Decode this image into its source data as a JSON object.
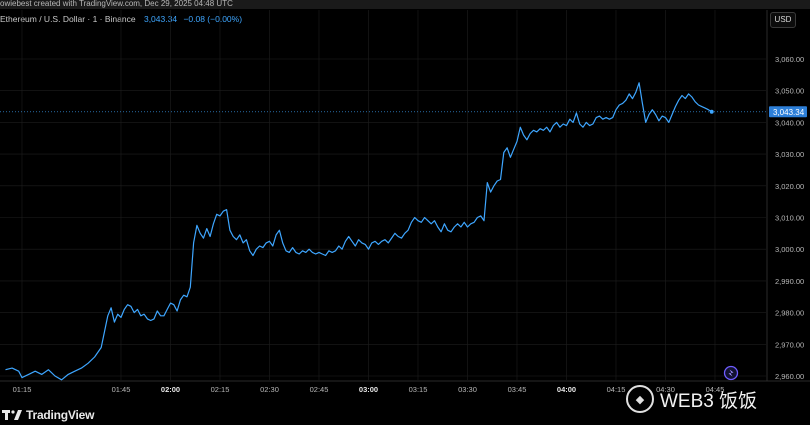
{
  "header": {
    "credit": "owiebest created with TradingView.com, Dec 29, 2025 04:48 UTC",
    "symbol": "Ethereum / U.S. Dollar · 1 · Binance",
    "last_price": "3,043.34",
    "change": "−0.08 (−0.00%)",
    "currency_button": "USD"
  },
  "branding": {
    "logo_text": "TradingView",
    "watermark_text": "WEB3 饭饭"
  },
  "colors": {
    "background": "#000000",
    "line": "#3ea6ff",
    "grid": "#1e1e1e",
    "axis_text": "#b8b8b8",
    "price_tag": "#2d7fd8"
  },
  "chart_data": {
    "type": "line",
    "title": "Ethereum / U.S. Dollar · 1 · Binance",
    "xlabel": "",
    "ylabel": "",
    "x_tick_labels": [
      "01:15",
      "01:45",
      "02:00",
      "02:15",
      "02:30",
      "02:45",
      "03:00",
      "03:15",
      "03:30",
      "03:45",
      "04:00",
      "04:15",
      "04:30",
      "04:45"
    ],
    "y_tick_labels": [
      "2,960.00",
      "2,970.00",
      "2,980.00",
      "2,990.00",
      "3,000.00",
      "3,010.00",
      "3,020.00",
      "3,030.00",
      "3,040.00",
      "3,050.00",
      "3,060.00"
    ],
    "ylim": [
      2959,
      3066
    ],
    "xlim": [
      "01:15",
      "04:50"
    ],
    "grid": true,
    "last_price_label": "3,043.34",
    "series": [
      {
        "values": [
          [
            "01:10",
            2962.0
          ],
          [
            "01:12",
            2962.5
          ],
          [
            "01:14",
            2961.5
          ],
          [
            "01:15",
            2959.5
          ],
          [
            "01:17",
            2960.5
          ],
          [
            "01:19",
            2961.5
          ],
          [
            "01:21",
            2960.5
          ],
          [
            "01:23",
            2962.0
          ],
          [
            "01:25",
            2960.0
          ],
          [
            "01:27",
            2958.8
          ],
          [
            "01:29",
            2960.5
          ],
          [
            "01:31",
            2961.5
          ],
          [
            "01:33",
            2962.5
          ],
          [
            "01:35",
            2964.0
          ],
          [
            "01:37",
            2966.0
          ],
          [
            "01:39",
            2969.0
          ],
          [
            "01:40",
            2974.0
          ],
          [
            "01:41",
            2979.0
          ],
          [
            "01:42",
            2981.5
          ],
          [
            "01:43",
            2977.0
          ],
          [
            "01:44",
            2979.5
          ],
          [
            "01:45",
            2978.5
          ],
          [
            "01:46",
            2981.0
          ],
          [
            "01:47",
            2982.5
          ],
          [
            "01:48",
            2982.0
          ],
          [
            "01:49",
            2980.0
          ],
          [
            "01:50",
            2981.0
          ],
          [
            "01:51",
            2979.0
          ],
          [
            "01:52",
            2979.5
          ],
          [
            "01:53",
            2978.0
          ],
          [
            "01:54",
            2977.5
          ],
          [
            "01:55",
            2978.0
          ],
          [
            "01:56",
            2980.5
          ],
          [
            "01:57",
            2979.0
          ],
          [
            "01:58",
            2979.0
          ],
          [
            "01:59",
            2981.0
          ],
          [
            "02:00",
            2983.0
          ],
          [
            "02:01",
            2982.5
          ],
          [
            "02:02",
            2980.5
          ],
          [
            "02:03",
            2984.0
          ],
          [
            "02:04",
            2985.5
          ],
          [
            "02:05",
            2985.0
          ],
          [
            "02:06",
            2988.0
          ],
          [
            "02:07",
            3002.0
          ],
          [
            "02:08",
            3007.5
          ],
          [
            "02:09",
            3005.0
          ],
          [
            "02:10",
            3003.5
          ],
          [
            "02:11",
            3006.5
          ],
          [
            "02:12",
            3004.0
          ],
          [
            "02:13",
            3008.0
          ],
          [
            "02:14",
            3011.0
          ],
          [
            "02:15",
            3010.5
          ],
          [
            "02:16",
            3012.0
          ],
          [
            "02:17",
            3012.5
          ],
          [
            "02:18",
            3006.0
          ],
          [
            "02:19",
            3004.0
          ],
          [
            "02:20",
            3003.0
          ],
          [
            "02:21",
            3004.5
          ],
          [
            "02:22",
            3002.0
          ],
          [
            "02:23",
            3003.0
          ],
          [
            "02:24",
            2999.5
          ],
          [
            "02:25",
            2998.0
          ],
          [
            "02:26",
            3000.0
          ],
          [
            "02:27",
            3001.0
          ],
          [
            "02:28",
            3000.5
          ],
          [
            "02:29",
            3002.0
          ],
          [
            "02:30",
            3002.5
          ],
          [
            "02:31",
            3001.0
          ],
          [
            "02:32",
            3004.5
          ],
          [
            "02:33",
            3006.0
          ],
          [
            "02:34",
            3002.0
          ],
          [
            "02:35",
            2999.5
          ],
          [
            "02:36",
            2999.0
          ],
          [
            "02:37",
            3000.5
          ],
          [
            "02:38",
            2999.0
          ],
          [
            "02:39",
            2998.5
          ],
          [
            "02:40",
            2999.5
          ],
          [
            "02:41",
            2999.0
          ],
          [
            "02:42",
            3000.0
          ],
          [
            "02:43",
            2999.0
          ],
          [
            "02:44",
            2998.5
          ],
          [
            "02:45",
            2999.0
          ],
          [
            "02:46",
            2998.5
          ],
          [
            "02:47",
            2998.0
          ],
          [
            "02:48",
            2999.5
          ],
          [
            "02:49",
            2999.0
          ],
          [
            "02:50",
            2999.5
          ],
          [
            "02:51",
            3001.0
          ],
          [
            "02:52",
            3000.0
          ],
          [
            "02:53",
            3002.5
          ],
          [
            "02:54",
            3004.0
          ],
          [
            "02:55",
            3002.5
          ],
          [
            "02:56",
            3001.0
          ],
          [
            "02:57",
            3003.0
          ],
          [
            "02:58",
            3002.0
          ],
          [
            "02:59",
            3001.5
          ],
          [
            "03:00",
            3000.0
          ],
          [
            "03:01",
            3002.0
          ],
          [
            "03:02",
            3002.5
          ],
          [
            "03:03",
            3001.5
          ],
          [
            "03:04",
            3002.5
          ],
          [
            "03:05",
            3003.0
          ],
          [
            "03:06",
            3002.0
          ],
          [
            "03:07",
            3003.5
          ],
          [
            "03:08",
            3005.0
          ],
          [
            "03:09",
            3004.0
          ],
          [
            "03:10",
            3003.5
          ],
          [
            "03:11",
            3005.0
          ],
          [
            "03:12",
            3006.0
          ],
          [
            "03:13",
            3008.5
          ],
          [
            "03:14",
            3010.0
          ],
          [
            "03:15",
            3009.0
          ],
          [
            "03:16",
            3008.5
          ],
          [
            "03:17",
            3010.0
          ],
          [
            "03:18",
            3009.0
          ],
          [
            "03:19",
            3008.0
          ],
          [
            "03:20",
            3009.0
          ],
          [
            "03:21",
            3007.0
          ],
          [
            "03:22",
            3005.5
          ],
          [
            "03:23",
            3008.0
          ],
          [
            "03:24",
            3006.0
          ],
          [
            "03:25",
            3005.5
          ],
          [
            "03:26",
            3007.0
          ],
          [
            "03:27",
            3008.0
          ],
          [
            "03:28",
            3007.0
          ],
          [
            "03:29",
            3008.5
          ],
          [
            "03:30",
            3007.0
          ],
          [
            "03:31",
            3008.0
          ],
          [
            "03:32",
            3008.5
          ],
          [
            "03:33",
            3010.0
          ],
          [
            "03:34",
            3010.5
          ],
          [
            "03:35",
            3009.0
          ],
          [
            "03:36",
            3021.0
          ],
          [
            "03:37",
            3018.0
          ],
          [
            "03:38",
            3020.0
          ],
          [
            "03:39",
            3021.5
          ],
          [
            "03:40",
            3022.0
          ],
          [
            "03:41",
            3030.5
          ],
          [
            "03:42",
            3032.0
          ],
          [
            "03:43",
            3029.0
          ],
          [
            "03:44",
            3031.5
          ],
          [
            "03:45",
            3034.0
          ],
          [
            "03:46",
            3038.5
          ],
          [
            "03:47",
            3036.0
          ],
          [
            "03:48",
            3034.5
          ],
          [
            "03:49",
            3036.5
          ],
          [
            "03:50",
            3037.5
          ],
          [
            "03:51",
            3037.0
          ],
          [
            "03:52",
            3038.0
          ],
          [
            "03:53",
            3037.5
          ],
          [
            "03:54",
            3038.5
          ],
          [
            "03:55",
            3037.0
          ],
          [
            "03:56",
            3039.0
          ],
          [
            "03:57",
            3040.0
          ],
          [
            "03:58",
            3038.5
          ],
          [
            "03:59",
            3039.5
          ],
          [
            "04:00",
            3039.0
          ],
          [
            "04:01",
            3041.0
          ],
          [
            "04:02",
            3040.0
          ],
          [
            "04:03",
            3043.0
          ],
          [
            "04:04",
            3039.5
          ],
          [
            "04:05",
            3038.5
          ],
          [
            "04:06",
            3040.0
          ],
          [
            "04:07",
            3039.0
          ],
          [
            "04:08",
            3039.5
          ],
          [
            "04:09",
            3041.5
          ],
          [
            "04:10",
            3042.0
          ],
          [
            "04:11",
            3041.0
          ],
          [
            "04:12",
            3041.5
          ],
          [
            "04:13",
            3041.0
          ],
          [
            "04:14",
            3041.5
          ],
          [
            "04:15",
            3044.0
          ],
          [
            "04:16",
            3045.5
          ],
          [
            "04:17",
            3046.0
          ],
          [
            "04:18",
            3047.0
          ],
          [
            "04:19",
            3049.0
          ],
          [
            "04:20",
            3047.5
          ],
          [
            "04:21",
            3049.5
          ],
          [
            "04:22",
            3052.5
          ],
          [
            "04:23",
            3046.0
          ],
          [
            "04:24",
            3040.0
          ],
          [
            "04:25",
            3042.5
          ],
          [
            "04:26",
            3044.0
          ],
          [
            "04:27",
            3042.5
          ],
          [
            "04:28",
            3040.5
          ],
          [
            "04:29",
            3042.0
          ],
          [
            "04:30",
            3041.5
          ],
          [
            "04:31",
            3040.0
          ],
          [
            "04:32",
            3042.5
          ],
          [
            "04:33",
            3045.0
          ],
          [
            "04:34",
            3047.0
          ],
          [
            "04:35",
            3048.5
          ],
          [
            "04:36",
            3047.5
          ],
          [
            "04:37",
            3049.0
          ],
          [
            "04:38",
            3048.0
          ],
          [
            "04:39",
            3046.5
          ],
          [
            "04:40",
            3045.5
          ],
          [
            "04:41",
            3045.0
          ],
          [
            "04:42",
            3044.5
          ],
          [
            "04:43",
            3044.0
          ],
          [
            "04:44",
            3043.34
          ]
        ]
      }
    ]
  }
}
